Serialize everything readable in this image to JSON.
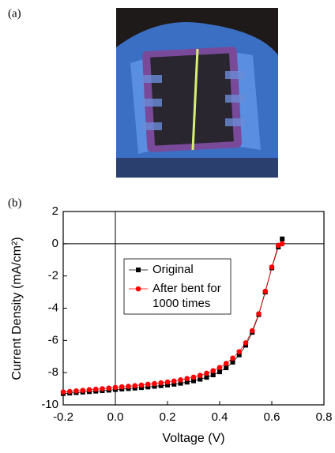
{
  "photo": {
    "label": "(a)"
  },
  "chart_data": {
    "type": "line",
    "panel_label": "(b)",
    "x_label": "Voltage (V)",
    "y_label": "Current Density (mA/cm²)",
    "x": [
      -0.2,
      -0.175,
      -0.15,
      -0.125,
      -0.1,
      -0.075,
      -0.05,
      -0.025,
      0,
      0.025,
      0.05,
      0.075,
      0.1,
      0.125,
      0.15,
      0.175,
      0.2,
      0.225,
      0.25,
      0.275,
      0.3,
      0.325,
      0.35,
      0.375,
      0.4,
      0.425,
      0.45,
      0.475,
      0.5,
      0.525,
      0.55,
      0.575,
      0.6,
      0.625,
      0.64
    ],
    "series": [
      {
        "name": "Original",
        "color": "#000000",
        "marker": "square",
        "values": [
          -9.3,
          -9.27,
          -9.24,
          -9.21,
          -9.18,
          -9.15,
          -9.12,
          -9.09,
          -9.05,
          -9.02,
          -8.99,
          -8.96,
          -8.93,
          -8.89,
          -8.85,
          -8.81,
          -8.77,
          -8.72,
          -8.66,
          -8.59,
          -8.51,
          -8.41,
          -8.29,
          -8.14,
          -7.95,
          -7.7,
          -7.35,
          -6.9,
          -6.3,
          -5.5,
          -4.4,
          -3.0,
          -1.5,
          -0.2,
          0.3
        ]
      },
      {
        "name": "After bent  for\n1000 times",
        "color": "#ff0000",
        "marker": "circle",
        "values": [
          -9.2,
          -9.17,
          -9.13,
          -9.1,
          -9.06,
          -9.03,
          -9.0,
          -8.96,
          -8.92,
          -8.88,
          -8.85,
          -8.81,
          -8.77,
          -8.72,
          -8.68,
          -8.63,
          -8.58,
          -8.52,
          -8.45,
          -8.37,
          -8.28,
          -8.17,
          -8.04,
          -7.88,
          -7.68,
          -7.43,
          -7.1,
          -6.7,
          -6.15,
          -5.4,
          -4.35,
          -2.95,
          -1.45,
          -0.1,
          0.0
        ]
      }
    ],
    "xlim": [
      -0.2,
      0.8
    ],
    "ylim": [
      -10,
      2
    ],
    "xticks": [
      -0.2,
      {
        "value": 0,
        "label": "0.0"
      },
      0.2,
      0.4,
      0.6,
      0.8
    ],
    "yticks": [
      -10,
      -8,
      -6,
      -4,
      -2,
      0,
      2
    ],
    "reference_lines": {
      "x": 0,
      "y": 0
    }
  }
}
